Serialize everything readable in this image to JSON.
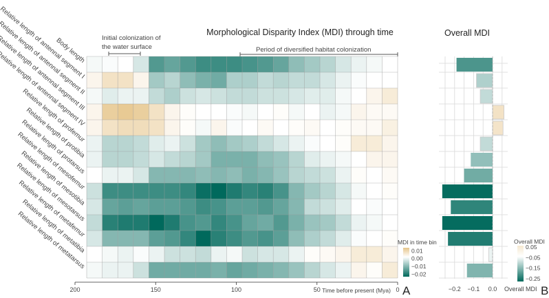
{
  "chart_data": [
    {
      "type": "heatmap",
      "title": "Morphological Disparity Index (MDI) through time",
      "xlabel": "Time before present (Mya)",
      "ylabel": "",
      "xlim": [
        200,
        0
      ],
      "x_ticks": [
        200,
        150,
        100,
        50,
        0
      ],
      "x_tick_labels": [
        "200",
        "150",
        "100",
        "50",
        "0"
      ],
      "bin_start_mya": 193,
      "n_bins": 20,
      "rows": [
        "Body length",
        "Relative length of antennal segment I",
        "Relative length of antennal segment II",
        "Relative length of antennal segment III",
        "Relative length of antennal segment IV",
        "Relative length of profemur",
        "Relative length of protibia",
        "Relative length of protarsus",
        "Relative length of mesofemur",
        "Relative length of mesotibia",
        "Relative length of mesotarsus",
        "Relative length of metafemur",
        "Relative length of metatibia",
        "Relative length of metatarsus"
      ],
      "values": [
        [
          -0.001,
          -0.0005,
          0,
          -0.004,
          -0.017,
          -0.015,
          -0.017,
          -0.019,
          -0.019,
          -0.019,
          -0.018,
          -0.017,
          -0.015,
          -0.011,
          -0.009,
          -0.007,
          -0.004,
          -0.002,
          -0.001,
          0
        ],
        [
          0.002,
          0.006,
          0.006,
          0.002,
          -0.009,
          -0.007,
          -0.011,
          -0.013,
          -0.014,
          -0.008,
          -0.008,
          -0.006,
          -0.007,
          -0.006,
          -0.006,
          -0.004,
          -0.002,
          -0.0005,
          0,
          0
        ],
        [
          -0.001,
          -0.003,
          -0.002,
          -0.002,
          -0.006,
          -0.008,
          -0.005,
          -0.004,
          -0.005,
          -0.006,
          -0.006,
          -0.005,
          -0.005,
          -0.004,
          -0.003,
          -0.003,
          -0.001,
          0,
          0.002,
          0.004
        ],
        [
          0.002,
          0.01,
          0.011,
          0.01,
          0.006,
          0.002,
          0.0005,
          0,
          0,
          -0.0005,
          -0.001,
          0,
          0.0005,
          -0.001,
          0,
          -0.002,
          -0.001,
          0.002,
          0.001,
          0.001
        ],
        [
          0.002,
          0.006,
          0.007,
          0.007,
          0.006,
          0.002,
          0.0005,
          -0.001,
          0.002,
          -0.0005,
          0,
          0.001,
          0,
          0.0005,
          0.001,
          0,
          0.0005,
          0.001,
          0.001,
          0.003
        ],
        [
          -0.002,
          -0.007,
          -0.007,
          -0.006,
          -0.003,
          -0.002,
          -0.005,
          -0.009,
          -0.011,
          -0.009,
          -0.008,
          -0.006,
          -0.004,
          -0.002,
          -0.0005,
          0,
          0.0005,
          0.004,
          0.004,
          0.002
        ],
        [
          -0.002,
          -0.007,
          -0.007,
          -0.006,
          -0.004,
          -0.006,
          -0.007,
          -0.009,
          -0.013,
          -0.013,
          -0.013,
          -0.011,
          -0.01,
          -0.007,
          -0.003,
          -0.002,
          -0.001,
          0,
          0.002,
          0.002
        ],
        [
          0,
          -0.002,
          -0.002,
          -0.004,
          -0.012,
          -0.012,
          -0.012,
          -0.011,
          -0.012,
          -0.011,
          -0.013,
          -0.012,
          -0.01,
          -0.007,
          -0.006,
          -0.005,
          -0.002,
          0.0005,
          0,
          0.001
        ],
        [
          -0.005,
          -0.019,
          -0.019,
          -0.019,
          -0.019,
          -0.019,
          -0.02,
          -0.024,
          -0.025,
          -0.022,
          -0.02,
          -0.021,
          -0.018,
          -0.012,
          -0.009,
          -0.007,
          -0.004,
          -0.001,
          0,
          0.0005
        ],
        [
          -0.004,
          -0.015,
          -0.016,
          -0.015,
          -0.016,
          -0.016,
          -0.017,
          -0.019,
          -0.018,
          -0.016,
          -0.016,
          -0.017,
          -0.015,
          -0.012,
          -0.006,
          -0.005,
          -0.003,
          0,
          -0.0005,
          0
        ],
        [
          -0.006,
          -0.021,
          -0.022,
          -0.022,
          -0.025,
          -0.022,
          -0.018,
          -0.017,
          -0.02,
          -0.018,
          -0.015,
          -0.014,
          -0.017,
          -0.013,
          -0.01,
          -0.009,
          -0.006,
          -0.002,
          -0.001,
          0
        ],
        [
          -0.004,
          -0.012,
          -0.012,
          -0.012,
          -0.016,
          -0.017,
          -0.02,
          -0.025,
          -0.021,
          -0.019,
          -0.017,
          -0.018,
          -0.016,
          -0.011,
          -0.008,
          -0.006,
          -0.003,
          -0.0005,
          0,
          0.0005
        ],
        [
          0,
          -0.001,
          -0.002,
          -0.0005,
          -0.002,
          -0.005,
          -0.005,
          -0.006,
          -0.002,
          -0.001,
          -0.005,
          -0.004,
          -0.004,
          -0.002,
          0.0005,
          0.001,
          0.002,
          0.004,
          0.004,
          0.002
        ],
        [
          -0.001,
          -0.002,
          -0.002,
          -0.005,
          -0.014,
          -0.014,
          -0.014,
          -0.014,
          -0.013,
          -0.015,
          -0.014,
          -0.013,
          -0.012,
          -0.01,
          -0.007,
          -0.004,
          -0.002,
          0.002,
          0.0005,
          0.004
        ]
      ],
      "color_scale": {
        "min": -0.025,
        "max": 0.012,
        "low_color": "#00695c",
        "mid_color": "#ffffff",
        "high_color": "#e6c58a"
      },
      "legend": {
        "title": "MDI in time bin",
        "ticks": [
          0.01,
          0.0,
          -0.01,
          -0.02
        ],
        "tick_labels": [
          "0.01",
          "0.00",
          "−0.01",
          "−0.02"
        ],
        "placement": "bottom-right"
      },
      "annotations": [
        {
          "text_lines": [
            "Initial colonization of",
            "the water surface"
          ],
          "from_mya": 180,
          "to_mya": 160
        },
        {
          "text_lines": [
            "Period of diversified habitat colonization"
          ],
          "from_mya": 98,
          "to_mya": 0
        }
      ],
      "panel_label": "A",
      "grid": true
    },
    {
      "type": "bar",
      "orientation": "horizontal",
      "title": "Overall MDI",
      "xlabel": "Overall MDI",
      "xlim": [
        -0.27,
        0.08
      ],
      "x_ticks": [
        -0.2,
        -0.1,
        0.0
      ],
      "x_tick_labels": [
        "−0.2",
        "−0.1",
        "0.0"
      ],
      "categories": [
        "Body length",
        "Relative length of antennal segment I",
        "Relative length of antennal segment II",
        "Relative length of antennal segment III",
        "Relative length of antennal segment IV",
        "Relative length of profemur",
        "Relative length of protibia",
        "Relative length of protarsus",
        "Relative length of mesofemur",
        "Relative length of mesotibia",
        "Relative length of mesotarsus",
        "Relative length of metafemur",
        "Relative length of metatibia",
        "Relative length of metatarsus"
      ],
      "values": [
        -0.19,
        -0.085,
        -0.065,
        0.06,
        0.055,
        -0.065,
        -0.115,
        -0.15,
        -0.265,
        -0.22,
        -0.265,
        -0.235,
        -0.02,
        -0.135
      ],
      "color_scale": {
        "min": -0.27,
        "max": 0.05
      },
      "legend": {
        "title": "Overall MDI",
        "ticks": [
          0.05,
          -0.05,
          -0.15,
          -0.25
        ],
        "tick_labels": [
          "0.05",
          "−0.05",
          "−0.15",
          "−0.25"
        ],
        "placement": "bottom-right"
      },
      "panel_label": "B",
      "grid": true
    }
  ]
}
